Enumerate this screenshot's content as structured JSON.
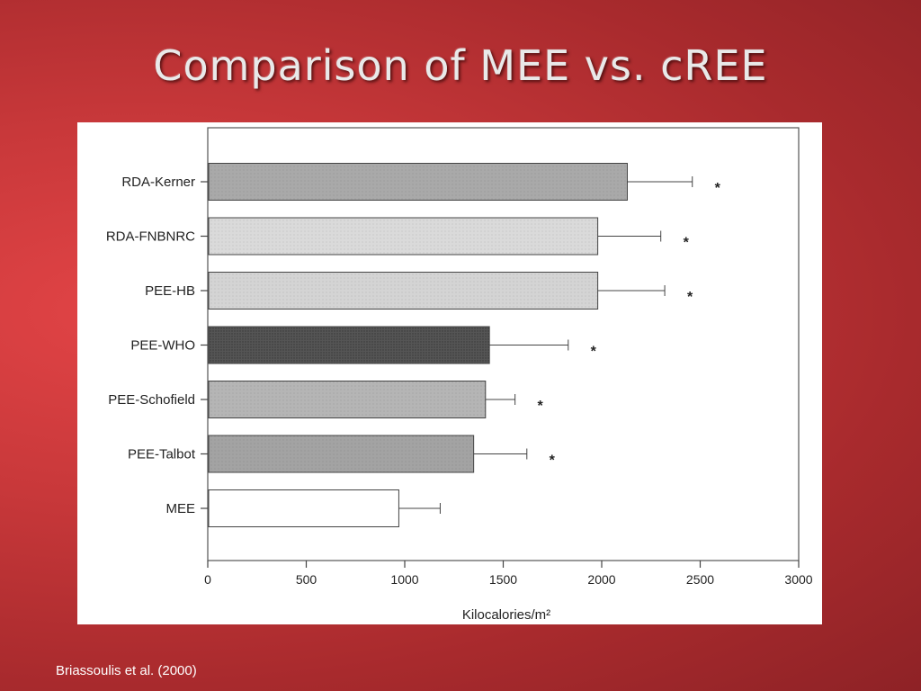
{
  "slide": {
    "title": "Comparison of MEE vs. cREE",
    "citation": "Briassoulis et al. (2000)"
  },
  "chart_data": {
    "type": "bar",
    "orientation": "horizontal",
    "categories": [
      "RDA-Kerner",
      "RDA-FNBNRC",
      "PEE-HB",
      "PEE-WHO",
      "PEE-Schofield",
      "PEE-Talbot",
      "MEE"
    ],
    "values": [
      2130,
      1980,
      1980,
      1430,
      1410,
      1350,
      970
    ],
    "error_plus": [
      330,
      320,
      340,
      400,
      150,
      270,
      210
    ],
    "significance_markers": [
      "*",
      "*",
      "*",
      "*",
      "*",
      "*",
      ""
    ],
    "bar_colors": [
      "#a9a9a9",
      "#dadada",
      "#d4d4d4",
      "#555555",
      "#b5b5b5",
      "#a3a3a3",
      "#ffffff"
    ],
    "xlabel": "Kilocalories/m²",
    "ylabel": "",
    "xlim": [
      0,
      3000
    ],
    "xticks": [
      0,
      500,
      1000,
      1500,
      2000,
      2500,
      3000
    ],
    "grid": false,
    "legend": "none"
  }
}
